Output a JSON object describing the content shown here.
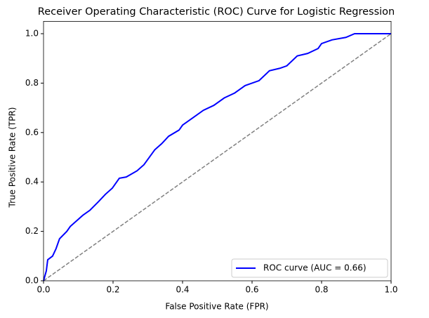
{
  "chart_data": {
    "type": "line",
    "title": "Receiver Operating Characteristic (ROC) Curve for Logistic Regression",
    "x_label": "False Positive Rate (FPR)",
    "y_label": "True Positive Rate (TPR)",
    "xlim": [
      0,
      1
    ],
    "ylim": [
      0,
      1.05
    ],
    "xticks": [
      {
        "value": 0,
        "label": "0.0"
      },
      0.2,
      0.4,
      0.6,
      0.8,
      {
        "value": 1,
        "label": "1.0"
      }
    ],
    "yticks": [
      {
        "value": 0,
        "label": "0.0"
      },
      0.2,
      0.4,
      0.6,
      0.8,
      {
        "value": 1,
        "label": "1.0"
      }
    ],
    "grid": false,
    "legend_position": "lower right",
    "series": [
      {
        "name": "ROC curve (AUC = 0.66)",
        "color": "blue",
        "x": [
          0,
          0.008,
          0.012,
          0.026,
          0.036,
          0.046,
          0.067,
          0.077,
          0.097,
          0.113,
          0.133,
          0.158,
          0.178,
          0.198,
          0.218,
          0.238,
          0.269,
          0.289,
          0.32,
          0.34,
          0.36,
          0.39,
          0.4,
          0.43,
          0.46,
          0.49,
          0.52,
          0.55,
          0.58,
          0.62,
          0.65,
          0.68,
          0.7,
          0.73,
          0.76,
          0.79,
          0.8,
          0.83,
          0.87,
          0.895,
          1.0
        ],
        "values": [
          0,
          0.04,
          0.085,
          0.1,
          0.13,
          0.17,
          0.2,
          0.22,
          0.245,
          0.265,
          0.285,
          0.32,
          0.35,
          0.375,
          0.415,
          0.42,
          0.445,
          0.47,
          0.53,
          0.555,
          0.585,
          0.61,
          0.63,
          0.66,
          0.69,
          0.71,
          0.74,
          0.76,
          0.79,
          0.81,
          0.85,
          0.86,
          0.87,
          0.91,
          0.92,
          0.94,
          0.96,
          0.975,
          0.985,
          1.0,
          1.0
        ]
      }
    ],
    "reference_line": {
      "color": "gray",
      "dashed": true,
      "x": [
        0,
        1
      ],
      "values": [
        0,
        1
      ]
    }
  }
}
